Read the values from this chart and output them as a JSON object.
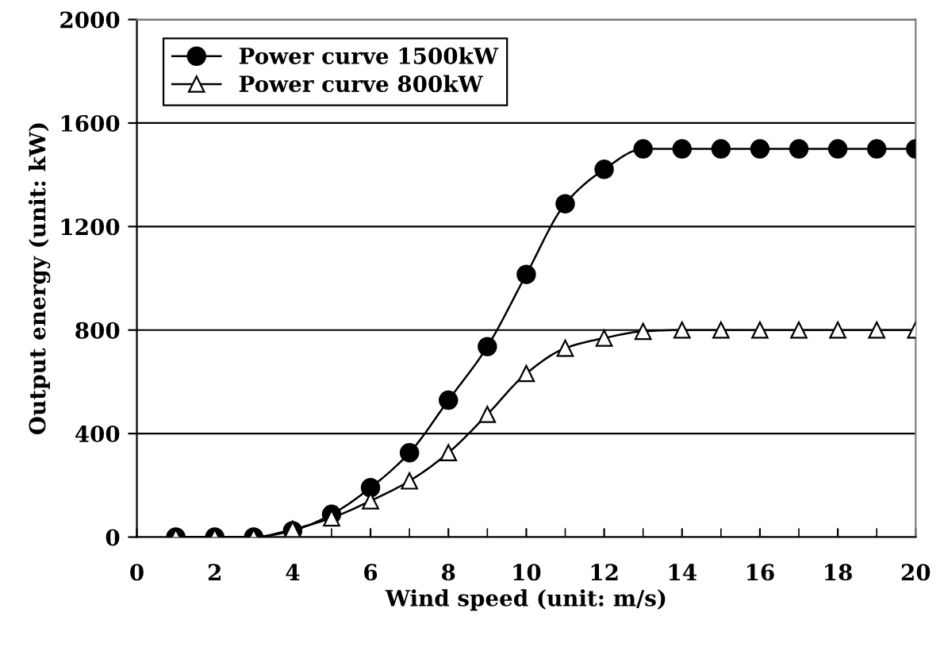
{
  "chart_data": {
    "type": "line",
    "xlabel": "Wind speed (unit: m/s)",
    "ylabel": "Output energy (unit: kW)",
    "x": [
      1,
      2,
      3,
      4,
      5,
      6,
      7,
      8,
      9,
      10,
      11,
      12,
      13,
      14,
      15,
      16,
      17,
      18,
      19,
      20
    ],
    "series": [
      {
        "name": "Power curve 1500kW",
        "color": "#000000",
        "marker": "circle",
        "values": [
          0,
          0,
          0,
          25,
          88,
          191,
          326,
          529,
          736,
          1015,
          1288,
          1421,
          1500,
          1500,
          1500,
          1500,
          1500,
          1500,
          1500,
          1500
        ]
      },
      {
        "name": "Power curve 800kW",
        "color": "#000000",
        "marker": "triangle",
        "values": [
          0,
          0,
          0,
          30,
          74,
          140,
          217,
          326,
          474,
          632,
          730,
          769,
          795,
          800,
          800,
          800,
          800,
          800,
          800,
          800
        ]
      }
    ],
    "xlim": [
      0,
      20
    ],
    "xticks": [
      0,
      2,
      4,
      6,
      8,
      10,
      12,
      14,
      16,
      18,
      20
    ],
    "ylim": [
      0,
      2000
    ],
    "yticks": [
      0,
      400,
      800,
      1200,
      1600,
      2000
    ],
    "grid": "y",
    "legend": "top left",
    "line_style": "solid"
  }
}
